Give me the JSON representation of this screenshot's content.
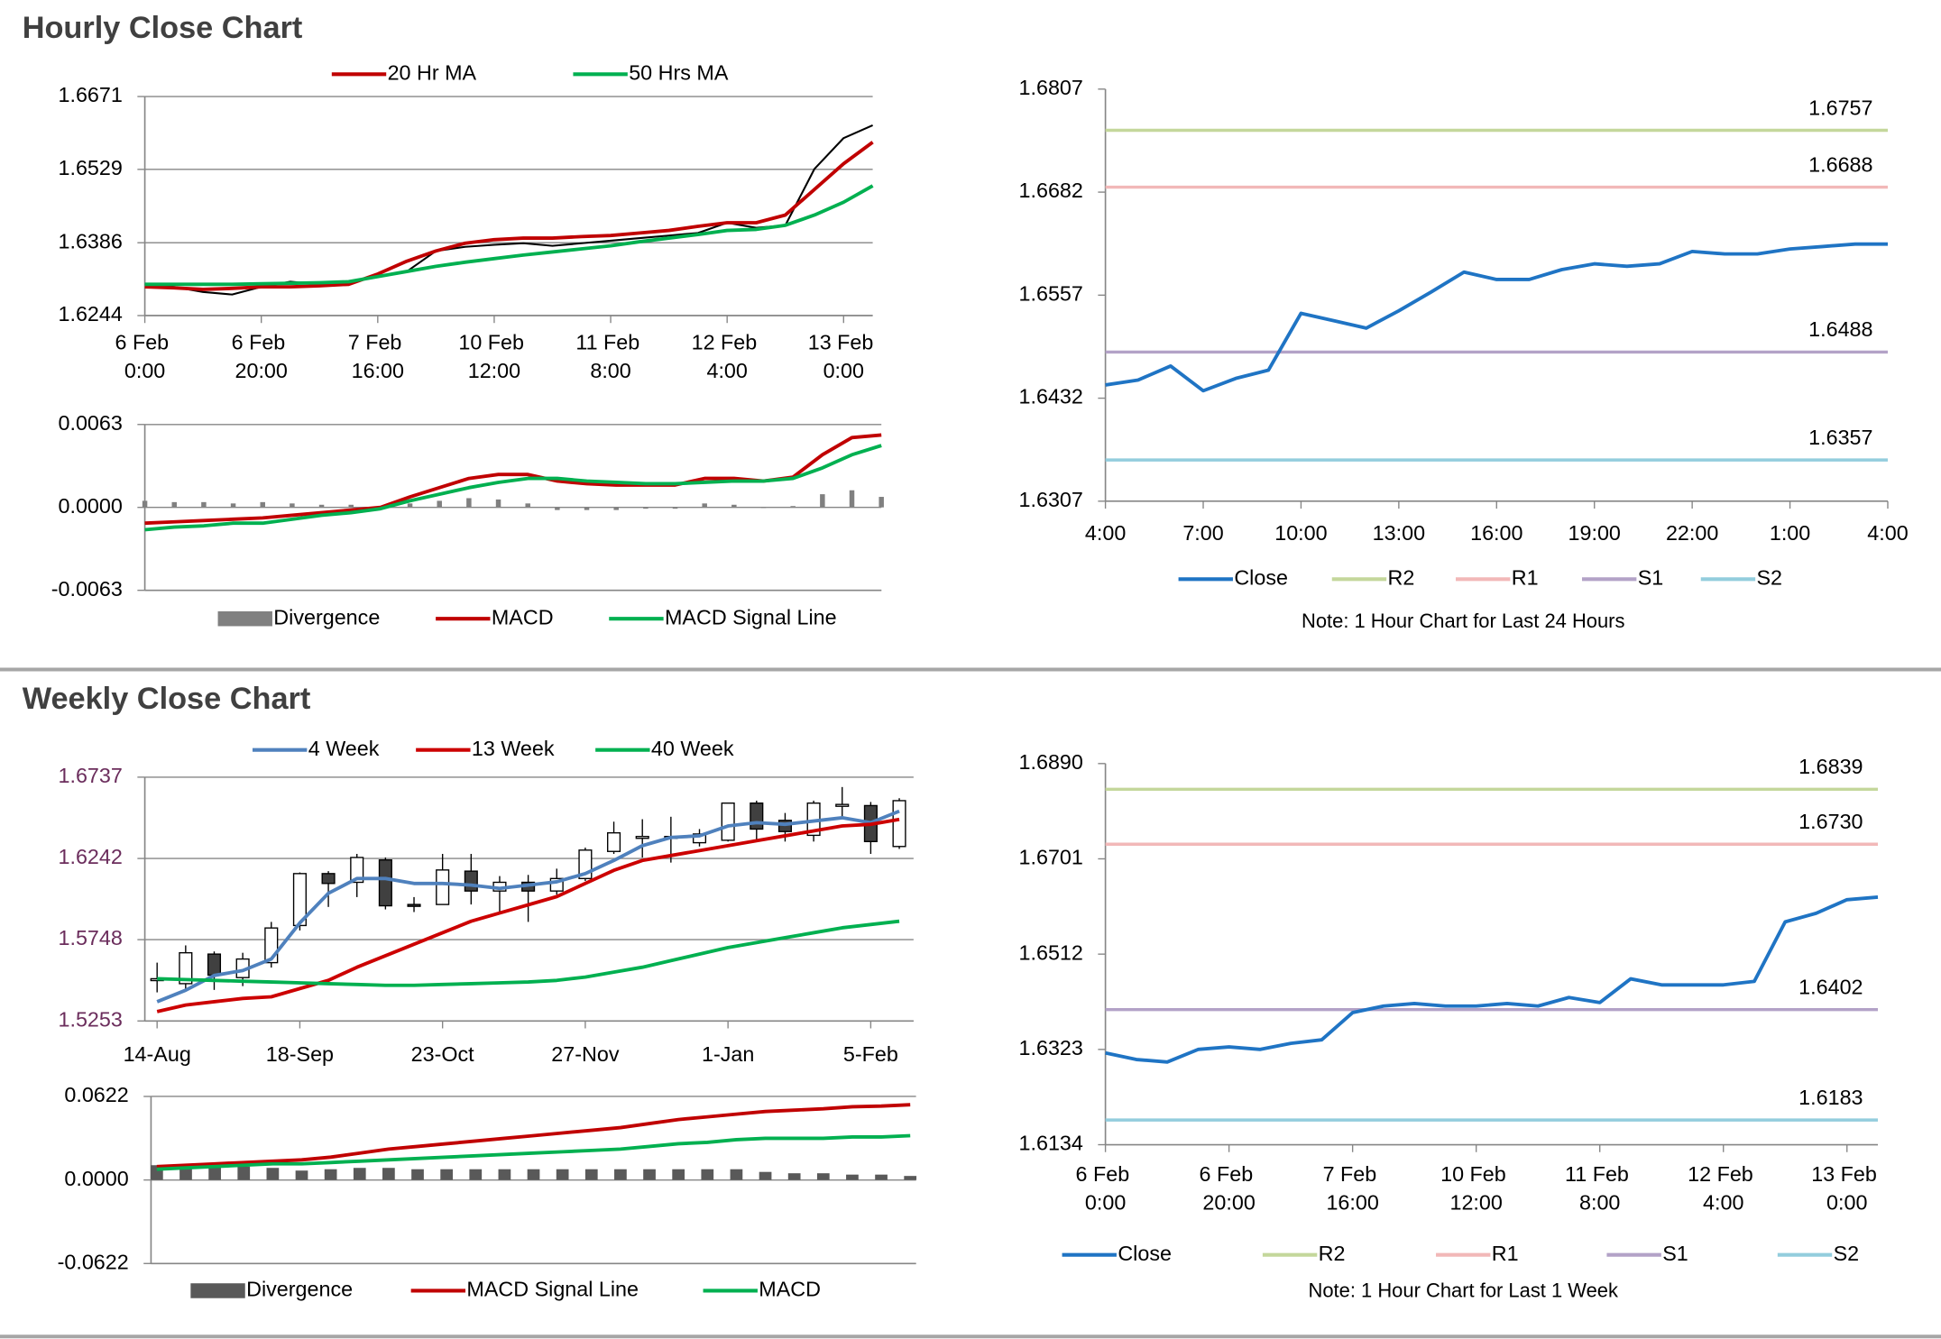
{
  "headings": [
    "Hourly Close Chart",
    "Weekly Close Chart"
  ],
  "chart_data": [
    {
      "type": "line",
      "x": [
        0,
        5,
        10,
        15,
        20,
        25,
        30,
        35,
        40,
        45,
        50,
        55,
        60,
        65,
        70,
        75,
        80,
        85,
        90,
        95,
        100,
        105,
        110,
        115,
        120,
        125
      ],
      "xlim": [
        0,
        125
      ],
      "xticks": [
        {
          "value": 0,
          "label": "6 Feb 0:00"
        },
        {
          "value": 20,
          "label": "6 Feb 20:00"
        },
        {
          "value": 40,
          "label": "7 Feb 16:00"
        },
        {
          "value": 60,
          "label": "10 Feb 12:00"
        },
        {
          "value": 80,
          "label": "11 Feb 8:00"
        },
        {
          "value": 100,
          "label": "12 Feb 4:00"
        },
        {
          "value": 120,
          "label": "13 Feb 0:00"
        }
      ],
      "ylim": [
        1.6244,
        1.6671
      ],
      "yticks": [
        1.6244,
        1.6386,
        1.6529,
        1.6671
      ],
      "grid": true,
      "series": [
        {
          "color": "#000000",
          "values": [
            1.6305,
            1.63,
            1.629,
            1.6285,
            1.63,
            1.631,
            1.6305,
            1.631,
            1.632,
            1.633,
            1.637,
            1.6378,
            1.6382,
            1.6385,
            1.638,
            1.6385,
            1.639,
            1.6395,
            1.64,
            1.6405,
            1.6425,
            1.6415,
            1.642,
            1.653,
            1.659,
            1.6615
          ]
        },
        {
          "name": "20 Hr MA",
          "color": "#c00000",
          "values": [
            1.63,
            1.6298,
            1.6295,
            1.6297,
            1.63,
            1.63,
            1.6302,
            1.6305,
            1.6325,
            1.635,
            1.637,
            1.6385,
            1.6392,
            1.6395,
            1.6395,
            1.6398,
            1.64,
            1.6405,
            1.641,
            1.6418,
            1.6425,
            1.6425,
            1.644,
            1.649,
            1.654,
            1.6582
          ]
        },
        {
          "name": "50 Hrs MA",
          "color": "#00b050",
          "values": [
            1.6305,
            1.6305,
            1.6305,
            1.6305,
            1.6306,
            1.6307,
            1.6308,
            1.631,
            1.632,
            1.633,
            1.634,
            1.6348,
            1.6355,
            1.6362,
            1.6368,
            1.6374,
            1.638,
            1.6388,
            1.6395,
            1.6402,
            1.641,
            1.6412,
            1.642,
            1.644,
            1.6465,
            1.6497
          ]
        }
      ]
    },
    {
      "type": "combo",
      "x": [
        0,
        5,
        10,
        15,
        20,
        25,
        30,
        35,
        40,
        45,
        50,
        55,
        60,
        65,
        70,
        75,
        80,
        85,
        90,
        95,
        100,
        105,
        110,
        115,
        120,
        125
      ],
      "xlim": [
        0,
        125
      ],
      "ylim": [
        -0.0063,
        0.0063
      ],
      "yticks": [
        -0.0063,
        {
          "value": 0,
          "label": "0.0000"
        },
        0.0063
      ],
      "grid": true,
      "series": [
        {
          "name": "Divergence",
          "type": "bar",
          "color": "#808080",
          "values": [
            0.0005,
            0.0004,
            0.0004,
            0.0003,
            0.0004,
            0.0003,
            0.0002,
            0.0002,
            0.0001,
            0.0003,
            0.0005,
            0.0007,
            0.0006,
            0.0003,
            -0.0002,
            -0.0002,
            -0.0002,
            -0.0001,
            -0.0001,
            0.0003,
            0.0002,
            0,
            0.0001,
            0.001,
            0.0013,
            0.0008
          ]
        },
        {
          "name": "MACD",
          "color": "#c00000",
          "values": [
            -0.0012,
            -0.0011,
            -0.001,
            -0.0009,
            -0.0008,
            -0.0006,
            -0.0004,
            -0.0002,
            0,
            0.0008,
            0.0015,
            0.0022,
            0.0025,
            0.0025,
            0.002,
            0.0018,
            0.0017,
            0.0017,
            0.0017,
            0.0022,
            0.0022,
            0.002,
            0.0023,
            0.004,
            0.0053,
            0.0055
          ]
        },
        {
          "name": "MACD Signal Line",
          "color": "#00b050",
          "values": [
            -0.0017,
            -0.0015,
            -0.0014,
            -0.0012,
            -0.0012,
            -0.0009,
            -0.0006,
            -0.0004,
            -0.0001,
            0.0005,
            0.001,
            0.0015,
            0.0019,
            0.0022,
            0.0022,
            0.002,
            0.0019,
            0.0018,
            0.0018,
            0.0019,
            0.002,
            0.002,
            0.0022,
            0.003,
            0.004,
            0.0047
          ]
        }
      ]
    },
    {
      "type": "line",
      "x": [
        0,
        1,
        2,
        3,
        4,
        5,
        6,
        7,
        8,
        9,
        10,
        11,
        12,
        13,
        14,
        15,
        16,
        17,
        18,
        19,
        20,
        21,
        22,
        23,
        24
      ],
      "xlim": [
        0,
        24
      ],
      "xticks": [
        {
          "value": 0,
          "label": "4:00"
        },
        {
          "value": 3,
          "label": "7:00"
        },
        {
          "value": 6,
          "label": "10:00"
        },
        {
          "value": 9,
          "label": "13:00"
        },
        {
          "value": 12,
          "label": "16:00"
        },
        {
          "value": 15,
          "label": "19:00"
        },
        {
          "value": 18,
          "label": "22:00"
        },
        {
          "value": 21,
          "label": "1:00"
        },
        {
          "value": 24,
          "label": "4:00"
        }
      ],
      "ylim": [
        1.6307,
        1.6807
      ],
      "yticks": [
        1.6307,
        1.6432,
        1.6557,
        1.6682,
        1.6807
      ],
      "grid": false,
      "series": [
        {
          "name": "Close",
          "color": "#1f74c4",
          "values": [
            1.6448,
            1.6454,
            1.6471,
            1.6441,
            1.6456,
            1.6466,
            1.6535,
            1.6526,
            1.6517,
            1.6538,
            1.6561,
            1.6585,
            1.6576,
            1.6576,
            1.6588,
            1.6595,
            1.6592,
            1.6595,
            1.661,
            1.6607,
            1.6607,
            1.6613,
            1.6616,
            1.6619,
            1.6619
          ]
        }
      ],
      "levels": [
        {
          "name": "R2",
          "value": 1.6757,
          "color": "#c4d79b"
        },
        {
          "name": "R1",
          "value": 1.6688,
          "color": "#f2b8b8"
        },
        {
          "name": "S1",
          "value": 1.6488,
          "color": "#b3a2c7"
        },
        {
          "name": "S2",
          "value": 1.6357,
          "color": "#93cddd"
        }
      ],
      "note": "Note: 1 Hour Chart for Last 24 Hours"
    },
    {
      "type": "candlestick",
      "x": [
        0,
        1,
        2,
        3,
        4,
        5,
        6,
        7,
        8,
        9,
        10,
        11,
        12,
        13,
        14,
        15,
        16,
        17,
        18,
        19,
        20,
        21,
        22,
        23,
        24,
        25,
        26
      ],
      "xlim": [
        -0.43,
        26.5
      ],
      "xticks": [
        {
          "value": 0,
          "label": "14-Aug"
        },
        {
          "value": 5,
          "label": "18-Sep"
        },
        {
          "value": 10,
          "label": "23-Oct"
        },
        {
          "value": 15,
          "label": "27-Nov"
        },
        {
          "value": 20,
          "label": "1-Jan"
        },
        {
          "value": 25,
          "label": "5-Feb"
        }
      ],
      "ylim": [
        1.5253,
        1.6737
      ],
      "yticks": [
        1.5253,
        1.5748,
        1.6242,
        1.6737
      ],
      "grid": true,
      "open": [
        1.5505,
        1.548,
        1.566,
        1.5517,
        1.5608,
        1.5834,
        1.615,
        1.6097,
        1.6233,
        1.5962,
        1.5962,
        1.6165,
        1.6044,
        1.6097,
        1.6044,
        1.612,
        1.6285,
        1.6368,
        1.6368,
        1.6338,
        1.6353,
        1.6579,
        1.6474,
        1.6383,
        1.6564,
        1.6564,
        1.6315
      ],
      "high": [
        1.5608,
        1.5713,
        1.5676,
        1.5668,
        1.5856,
        1.6157,
        1.6165,
        1.627,
        1.6248,
        1.6007,
        1.627,
        1.627,
        1.6135,
        1.6142,
        1.618,
        1.6308,
        1.6466,
        1.6481,
        1.6496,
        1.6421,
        1.6579,
        1.6594,
        1.6519,
        1.6594,
        1.6677,
        1.6586,
        1.6609
      ],
      "low": [
        1.5427,
        1.5442,
        1.5442,
        1.5465,
        1.5578,
        1.5804,
        1.5947,
        1.6007,
        1.5932,
        1.5916,
        1.5962,
        1.5962,
        1.5916,
        1.5856,
        1.6022,
        1.6105,
        1.627,
        1.6248,
        1.6217,
        1.6315,
        1.6345,
        1.6345,
        1.6345,
        1.6345,
        1.6496,
        1.627,
        1.63
      ],
      "close": [
        1.551,
        1.5668,
        1.5532,
        1.563,
        1.5819,
        1.615,
        1.609,
        1.6248,
        1.5954,
        1.5954,
        1.6172,
        1.6044,
        1.6097,
        1.6044,
        1.612,
        1.6293,
        1.6398,
        1.6376,
        1.6376,
        1.6391,
        1.6579,
        1.6421,
        1.6406,
        1.6579,
        1.6571,
        1.6345,
        1.6594
      ],
      "series": [
        {
          "name": "4 Week",
          "color": "#4f81bd",
          "values": [
            1.537,
            1.544,
            1.553,
            1.556,
            1.563,
            1.585,
            1.603,
            1.612,
            1.612,
            1.609,
            1.609,
            1.608,
            1.606,
            1.608,
            1.61,
            1.615,
            1.623,
            1.632,
            1.637,
            1.638,
            1.644,
            1.646,
            1.645,
            1.647,
            1.649,
            1.646,
            1.653
          ]
        },
        {
          "name": "13 Week",
          "color": "#cc0000",
          "values": [
            1.531,
            1.535,
            1.537,
            1.539,
            1.54,
            1.545,
            1.55,
            1.558,
            1.565,
            1.572,
            1.579,
            1.586,
            1.591,
            1.596,
            1.601,
            1.609,
            1.617,
            1.623,
            1.626,
            1.629,
            1.632,
            1.635,
            1.638,
            1.641,
            1.644,
            1.645,
            1.648
          ]
        },
        {
          "name": "40 Week",
          "color": "#00b050",
          "values": [
            1.551,
            1.5505,
            1.55,
            1.5495,
            1.549,
            1.5485,
            1.548,
            1.5475,
            1.547,
            1.547,
            1.5475,
            1.548,
            1.5485,
            1.549,
            1.55,
            1.552,
            1.555,
            1.558,
            1.562,
            1.566,
            1.57,
            1.573,
            1.576,
            1.579,
            1.582,
            1.584,
            1.586
          ]
        }
      ]
    },
    {
      "type": "combo",
      "x": [
        0,
        1,
        2,
        3,
        4,
        5,
        6,
        7,
        8,
        9,
        10,
        11,
        12,
        13,
        14,
        15,
        16,
        17,
        18,
        19,
        20,
        21,
        22,
        23,
        24,
        25,
        26
      ],
      "xlim": [
        -0.2,
        26.2
      ],
      "ylim": [
        -0.0622,
        0.0622
      ],
      "yticks": [
        -0.0622,
        {
          "value": 0,
          "label": "0.0000"
        },
        0.0622
      ],
      "grid": true,
      "series": [
        {
          "name": "Divergence",
          "type": "bar",
          "color": "#595959",
          "values": [
            0.011,
            0.011,
            0.011,
            0.01,
            0.009,
            0.007,
            0.008,
            0.009,
            0.009,
            0.008,
            0.008,
            0.008,
            0.008,
            0.008,
            0.008,
            0.008,
            0.008,
            0.008,
            0.008,
            0.008,
            0.008,
            0.006,
            0.005,
            0.005,
            0.004,
            0.004,
            0.003
          ]
        },
        {
          "name": "MACD Signal Line",
          "color": "#c00000",
          "values": [
            0.01,
            0.011,
            0.012,
            0.013,
            0.014,
            0.015,
            0.017,
            0.02,
            0.023,
            0.025,
            0.027,
            0.029,
            0.031,
            0.033,
            0.035,
            0.037,
            0.039,
            0.042,
            0.045,
            0.047,
            0.049,
            0.051,
            0.052,
            0.053,
            0.0545,
            0.055,
            0.056
          ]
        },
        {
          "name": "MACD",
          "color": "#00b050",
          "values": [
            0.008,
            0.009,
            0.01,
            0.011,
            0.012,
            0.012,
            0.013,
            0.014,
            0.015,
            0.016,
            0.017,
            0.018,
            0.019,
            0.02,
            0.021,
            0.022,
            0.023,
            0.025,
            0.027,
            0.028,
            0.03,
            0.031,
            0.031,
            0.031,
            0.032,
            0.032,
            0.033
          ]
        }
      ]
    },
    {
      "type": "line",
      "x": [
        0,
        5,
        10,
        15,
        20,
        25,
        30,
        35,
        40,
        45,
        50,
        55,
        60,
        65,
        70,
        75,
        80,
        85,
        90,
        95,
        100,
        105,
        110,
        115,
        120,
        125
      ],
      "xlim": [
        0,
        125
      ],
      "xticks": [
        {
          "value": 0,
          "label": "6 Feb 0:00"
        },
        {
          "value": 20,
          "label": "6 Feb 20:00"
        },
        {
          "value": 40,
          "label": "7 Feb 16:00"
        },
        {
          "value": 60,
          "label": "10 Feb 12:00"
        },
        {
          "value": 80,
          "label": "11 Feb 8:00"
        },
        {
          "value": 100,
          "label": "12 Feb 4:00"
        },
        {
          "value": 120,
          "label": "13 Feb 0:00"
        }
      ],
      "ylim": [
        1.6134,
        1.689
      ],
      "yticks": [
        1.6134,
        1.6323,
        1.6512,
        1.6701,
        {
          "value": 1.689,
          "label": "1.6890"
        }
      ],
      "grid": false,
      "series": [
        {
          "name": "Close",
          "color": "#1f74c4",
          "values": [
            1.6316,
            1.6303,
            1.6298,
            1.6323,
            1.6328,
            1.6323,
            1.6335,
            1.6342,
            1.6396,
            1.6409,
            1.6414,
            1.6409,
            1.6409,
            1.6414,
            1.6409,
            1.6426,
            1.6416,
            1.6463,
            1.6451,
            1.6451,
            1.6451,
            1.6458,
            1.6576,
            1.6593,
            1.662,
            1.6625
          ]
        }
      ],
      "levels": [
        {
          "name": "R2",
          "value": 1.6839,
          "color": "#c4d79b"
        },
        {
          "name": "R1",
          "value": 1.673,
          "label": "1.6730",
          "color": "#f2b8b8"
        },
        {
          "name": "S1",
          "value": 1.6402,
          "color": "#b3a2c7"
        },
        {
          "name": "S2",
          "value": 1.6183,
          "color": "#93cddd"
        }
      ],
      "note": "Note: 1 Hour Chart for Last 1 Week"
    }
  ]
}
